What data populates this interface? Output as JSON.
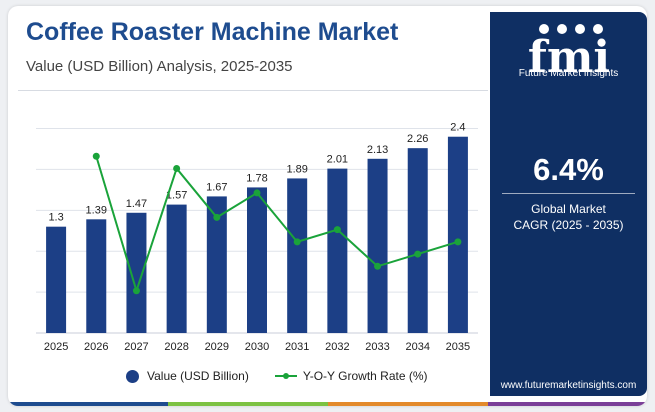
{
  "header": {
    "title": "Coffee Roaster Machine Market",
    "subtitle": "Value (USD Billion) Analysis, 2025-2035"
  },
  "legend": {
    "bar_label": "Value (USD Billion)",
    "line_label": "Y-O-Y Growth Rate (%)"
  },
  "colors": {
    "bar": "#1c3f86",
    "line": "#1aa33a",
    "title": "#1e4c8f",
    "panel": "#0f2f63",
    "stripe": [
      "#1e4c8f",
      "#7cc242",
      "#e38a2b",
      "#7b3f98"
    ]
  },
  "side_panel": {
    "logo_letters": "fmi",
    "logo_text": "Future Market Insights",
    "cagr_value": "6.4%",
    "cagr_label_line1": "Global Market",
    "cagr_label_line2": "CAGR (2025 - 2035)",
    "website": "www.futuremarketinsights.com"
  },
  "chart_data": {
    "type": "bar",
    "categories": [
      "2025",
      "2026",
      "2027",
      "2028",
      "2029",
      "2030",
      "2031",
      "2032",
      "2033",
      "2034",
      "2035"
    ],
    "series": [
      {
        "name": "Value (USD Billion)",
        "type": "bar",
        "values": [
          1.3,
          1.39,
          1.47,
          1.57,
          1.67,
          1.78,
          1.89,
          2.01,
          2.13,
          2.26,
          2.4
        ],
        "value_labels": [
          "1.3",
          "1.39",
          "1.47",
          "1.57",
          "1.67",
          "1.78",
          "1.89",
          "2.01",
          "2.13",
          "2.26",
          "2.4"
        ]
      },
      {
        "name": "Y-O-Y Growth Rate (%)",
        "type": "line",
        "values": [
          null,
          6.9,
          5.8,
          6.8,
          6.4,
          6.6,
          6.2,
          6.3,
          6.0,
          6.1,
          6.2
        ]
      }
    ],
    "ylim": [
      0,
      2.8
    ],
    "line_ylim": [
      5.7,
      7.0
    ],
    "grid": true,
    "legend_position": "bottom"
  }
}
